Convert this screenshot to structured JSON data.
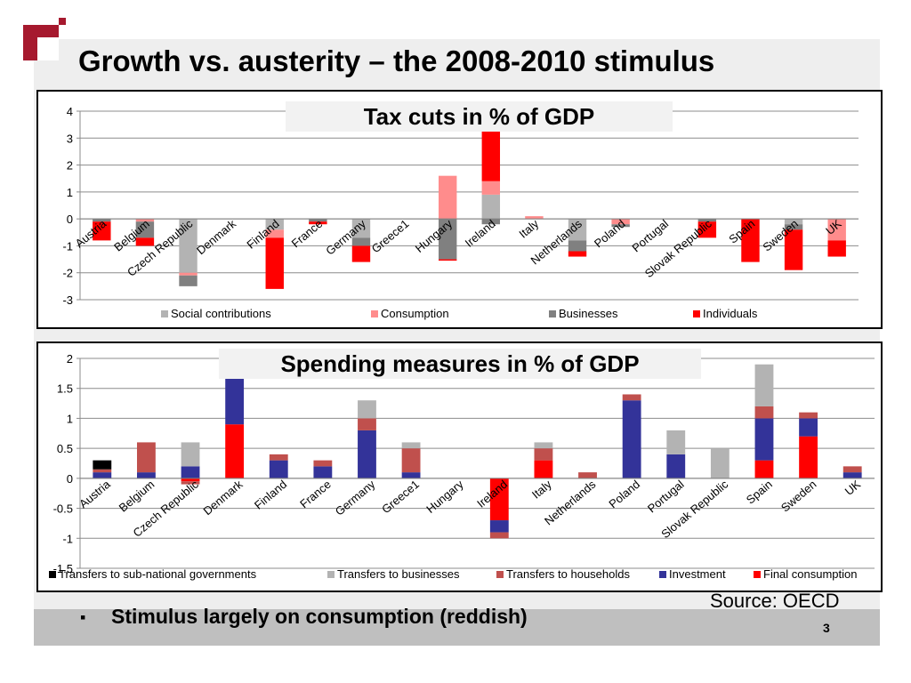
{
  "slide": {
    "title": "Growth vs. austerity – the 2008-2010 stimulus",
    "bullet": "Stimulus largely on consumption (reddish)",
    "source": "Source: OECD",
    "page_number": "3"
  },
  "chart_data": [
    {
      "type": "bar",
      "stacked": true,
      "title": "Tax cuts in % of GDP",
      "ylim": [
        -3,
        4
      ],
      "yticks": [
        -3,
        -2,
        -1,
        0,
        1,
        2,
        3,
        4
      ],
      "grid": true,
      "legend": "bottom",
      "categories": [
        "Austria",
        "Belgium",
        "Czech Republic",
        "Denmark",
        "Finland",
        "France",
        "Germany",
        "Greece1",
        "Hungary",
        "Ireland",
        "Italy",
        "Netherlands",
        "Poland",
        "Portugal",
        "Slovak Republic",
        "Spain",
        "Sweden",
        "UK"
      ],
      "series": [
        {
          "name": "Social contributions",
          "color": "#b3b3b3",
          "values": [
            0,
            0,
            -2.0,
            0,
            -0.4,
            0,
            -0.7,
            0,
            0,
            0.9,
            0,
            -0.8,
            0,
            0,
            0,
            0,
            -0.2,
            0
          ]
        },
        {
          "name": "Consumption",
          "color": "#ff8c8c",
          "values": [
            0,
            -0.1,
            -0.1,
            0,
            -0.3,
            0,
            0,
            0,
            1.6,
            0.5,
            0.1,
            0,
            -0.2,
            0,
            0,
            0,
            0,
            -0.8
          ]
        },
        {
          "name": "Businesses",
          "color": "#808080",
          "values": [
            -0.1,
            -0.6,
            -0.4,
            0,
            0,
            -0.1,
            -0.3,
            0,
            -1.5,
            -0.2,
            0,
            -0.4,
            -0.1,
            0,
            -0.1,
            0,
            -0.2,
            0
          ]
        },
        {
          "name": "Individuals",
          "color": "#ff0000",
          "values": [
            -0.7,
            -0.3,
            0,
            0,
            -1.9,
            -0.1,
            -0.6,
            0,
            -0.05,
            2.0,
            0,
            -0.2,
            0,
            0,
            -0.6,
            -1.6,
            -1.5,
            -0.6
          ]
        }
      ]
    },
    {
      "type": "bar",
      "stacked": true,
      "title": "Spending measures in % of GDP",
      "ylim": [
        -1.5,
        2
      ],
      "yticks": [
        -1.5,
        -1,
        -0.5,
        0,
        0.5,
        1,
        1.5,
        2
      ],
      "grid": true,
      "legend": "bottom",
      "categories": [
        "Austria",
        "Belgium",
        "Czech Republic",
        "Denmark",
        "Finland",
        "France",
        "Germany",
        "Greece1",
        "Hungary",
        "Ireland",
        "Italy",
        "Netherlands",
        "Poland",
        "Portugal",
        "Slovak Republic",
        "Spain",
        "Sweden",
        "UK"
      ],
      "series": [
        {
          "name": "Final consumption",
          "color": "#ff0000",
          "values": [
            0,
            0,
            -0.05,
            0.9,
            0,
            0,
            0,
            0,
            0,
            -0.7,
            0.3,
            0,
            0,
            0,
            0,
            0.3,
            0.7,
            0
          ]
        },
        {
          "name": "Investment",
          "color": "#333399",
          "values": [
            0.1,
            0.1,
            0.2,
            0.8,
            0.3,
            0.2,
            0.8,
            0.1,
            0,
            -0.2,
            0,
            0,
            1.3,
            0.4,
            0,
            0.7,
            0.3,
            0.1
          ]
        },
        {
          "name": "Transfers to households",
          "color": "#c0504d",
          "values": [
            0.05,
            0.5,
            -0.05,
            0.02,
            0.1,
            0.1,
            0.2,
            0.4,
            0,
            -0.1,
            0.2,
            0.1,
            0.1,
            0,
            0,
            0.2,
            0.1,
            0.1
          ]
        },
        {
          "name": "Transfers to businesses",
          "color": "#b3b3b3",
          "values": [
            0,
            0,
            0.4,
            0,
            0,
            0,
            0.3,
            0.1,
            0,
            0,
            0.1,
            0,
            0,
            0.4,
            0.5,
            0.7,
            0,
            0
          ]
        },
        {
          "name": "Transfers to sub-national governments",
          "color": "#000000",
          "values": [
            0.15,
            0,
            0,
            0,
            0,
            0,
            0,
            0,
            0,
            0,
            0,
            0,
            0,
            0,
            0,
            0,
            0,
            0
          ]
        }
      ],
      "legend_order": [
        "Transfers to sub-national governments",
        "Transfers to businesses",
        "Transfers to households",
        "Investment",
        "Final consumption"
      ]
    }
  ]
}
